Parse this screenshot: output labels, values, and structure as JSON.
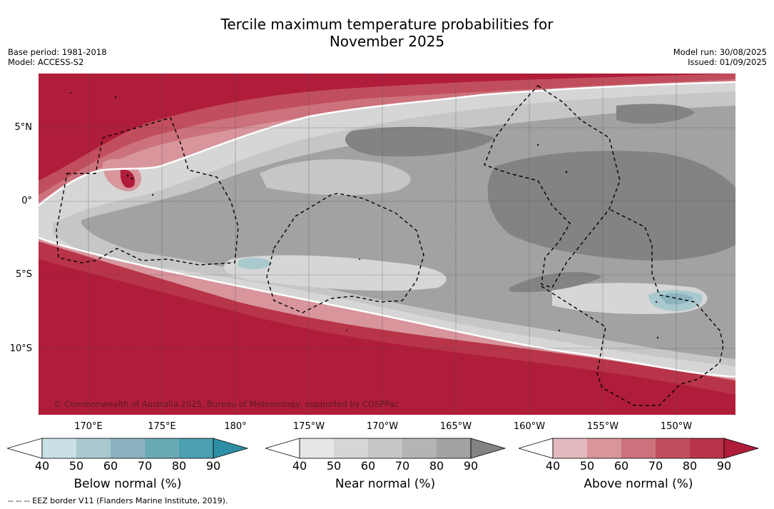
{
  "title_line1": "Tercile maximum temperature probabilities for",
  "title_line2": "November 2025",
  "meta_left": {
    "base_period": "Base period: 1981-2018",
    "model": "Model: ACCESS-S2"
  },
  "meta_right": {
    "model_run": "Model run: 30/08/2025",
    "issued": "Issued: 01/09/2025"
  },
  "lat_labels": [
    "5°N",
    "0°",
    "5°S",
    "10°S"
  ],
  "lon_labels": [
    "170°E",
    "175°E",
    "180°",
    "175°W",
    "170°W",
    "165°W",
    "160°W",
    "155°W",
    "150°W"
  ],
  "credit": "© Commonwealth of Australia 2025, Bureau of Meteorology, supported by COSPPac",
  "footer": "-- -- -- EEZ border V11 (Flanders Marine Institute, 2019).",
  "colorbars": [
    {
      "label": "Below normal (%)",
      "ticks": [
        "40",
        "50",
        "60",
        "70",
        "80",
        "90"
      ],
      "colors": [
        "#c9e1e6",
        "#a9c9cf",
        "#8bb4c0",
        "#6aaab5",
        "#4b9fb0",
        "#2e8fa4"
      ]
    },
    {
      "label": "Near normal (%)",
      "ticks": [
        "40",
        "50",
        "60",
        "70",
        "80",
        "90"
      ],
      "colors": [
        "#e6e6e6",
        "#d6d6d6",
        "#c6c6c6",
        "#b4b4b4",
        "#a2a2a2",
        "#838383"
      ]
    },
    {
      "label": "Above normal (%)",
      "ticks": [
        "40",
        "50",
        "60",
        "70",
        "80",
        "90"
      ],
      "colors": [
        "#e3b9bf",
        "#d8959c",
        "#cc727c",
        "#c14e5c",
        "#b83448",
        "#b01d3b"
      ]
    }
  ],
  "colors": {
    "above_max": "#b01d3b",
    "near_dark": "#838383",
    "below_mid": "#8bb4c0"
  }
}
